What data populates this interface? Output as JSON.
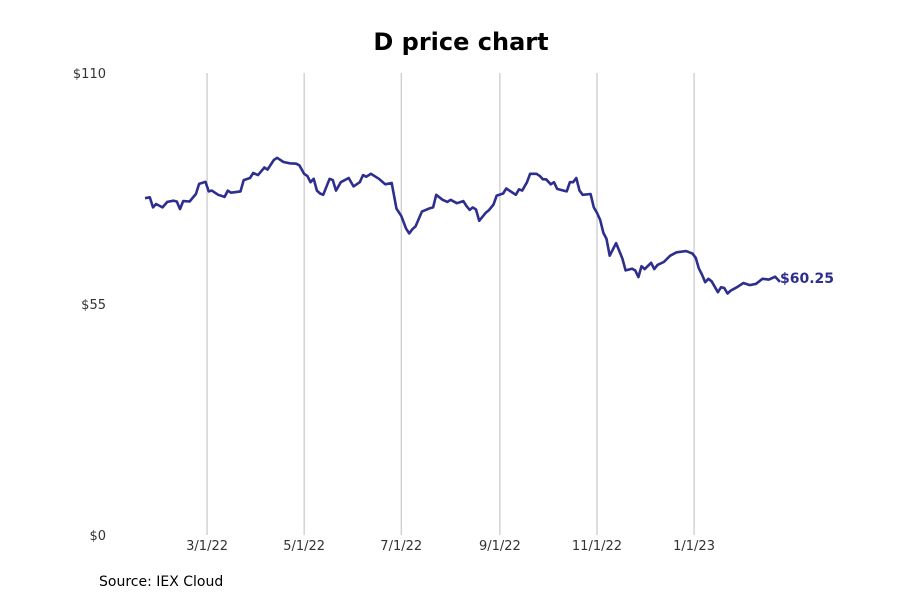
{
  "chart_data": {
    "type": "line",
    "title": "D price chart",
    "xlabel": "",
    "ylabel": "",
    "xlim": [
      "2022-01-21",
      "2023-02-24"
    ],
    "ylim": [
      0,
      110
    ],
    "grid": "vertical",
    "x_ticks": [
      {
        "date": "2022-03-01",
        "label": "3/1/22"
      },
      {
        "date": "2022-05-01",
        "label": "5/1/22"
      },
      {
        "date": "2022-07-01",
        "label": "7/1/22"
      },
      {
        "date": "2022-09-01",
        "label": "9/1/22"
      },
      {
        "date": "2022-11-01",
        "label": "11/1/22"
      },
      {
        "date": "2023-01-01",
        "label": "1/1/23"
      }
    ],
    "y_ticks": [
      {
        "value": 0,
        "label": "$0"
      },
      {
        "value": 55,
        "label": "$55"
      },
      {
        "value": 110,
        "label": "$110"
      }
    ],
    "series": [
      {
        "color": "#2e2e8f",
        "end_label": "$60.25",
        "points": [
          [
            "2022-01-21",
            80.2
          ],
          [
            "2022-01-24",
            80.4
          ],
          [
            "2022-01-26",
            78.0
          ],
          [
            "2022-01-28",
            78.8
          ],
          [
            "2022-02-01",
            78.0
          ],
          [
            "2022-02-04",
            79.3
          ],
          [
            "2022-02-08",
            79.6
          ],
          [
            "2022-02-10",
            79.4
          ],
          [
            "2022-02-12",
            77.6
          ],
          [
            "2022-02-14",
            79.5
          ],
          [
            "2022-02-18",
            79.4
          ],
          [
            "2022-02-22",
            81.2
          ],
          [
            "2022-02-24",
            83.6
          ],
          [
            "2022-02-28",
            84.1
          ],
          [
            "2022-03-02",
            81.8
          ],
          [
            "2022-03-04",
            82.0
          ],
          [
            "2022-03-08",
            81.0
          ],
          [
            "2022-03-12",
            80.5
          ],
          [
            "2022-03-14",
            82.0
          ],
          [
            "2022-03-16",
            81.5
          ],
          [
            "2022-03-22",
            81.8
          ],
          [
            "2022-03-24",
            84.5
          ],
          [
            "2022-03-28",
            85.0
          ],
          [
            "2022-03-30",
            86.2
          ],
          [
            "2022-04-02",
            85.7
          ],
          [
            "2022-04-06",
            87.5
          ],
          [
            "2022-04-08",
            87.0
          ],
          [
            "2022-04-12",
            89.3
          ],
          [
            "2022-04-14",
            89.8
          ],
          [
            "2022-04-18",
            88.8
          ],
          [
            "2022-04-22",
            88.5
          ],
          [
            "2022-04-26",
            88.4
          ],
          [
            "2022-04-28",
            88.0
          ],
          [
            "2022-05-01",
            86.0
          ],
          [
            "2022-05-03",
            85.5
          ],
          [
            "2022-05-05",
            84.0
          ],
          [
            "2022-05-07",
            84.8
          ],
          [
            "2022-05-09",
            82.0
          ],
          [
            "2022-05-11",
            81.3
          ],
          [
            "2022-05-13",
            81.0
          ],
          [
            "2022-05-17",
            84.8
          ],
          [
            "2022-05-19",
            84.5
          ],
          [
            "2022-05-21",
            82.0
          ],
          [
            "2022-05-24",
            84.0
          ],
          [
            "2022-05-29",
            85.0
          ],
          [
            "2022-06-01",
            83.0
          ],
          [
            "2022-06-05",
            84.0
          ],
          [
            "2022-06-07",
            85.7
          ],
          [
            "2022-06-09",
            85.3
          ],
          [
            "2022-06-12",
            86.0
          ],
          [
            "2022-06-17",
            84.8
          ],
          [
            "2022-06-21",
            83.5
          ],
          [
            "2022-06-25",
            83.8
          ],
          [
            "2022-06-28",
            77.7
          ],
          [
            "2022-07-01",
            76.0
          ],
          [
            "2022-07-04",
            73.0
          ],
          [
            "2022-07-06",
            71.8
          ],
          [
            "2022-07-08",
            72.8
          ],
          [
            "2022-07-10",
            73.5
          ],
          [
            "2022-07-14",
            77.0
          ],
          [
            "2022-07-19",
            77.8
          ],
          [
            "2022-07-21",
            78.0
          ],
          [
            "2022-07-23",
            81.0
          ],
          [
            "2022-07-27",
            79.8
          ],
          [
            "2022-07-30",
            79.3
          ],
          [
            "2022-08-01",
            79.8
          ],
          [
            "2022-08-05",
            79.0
          ],
          [
            "2022-08-09",
            79.5
          ],
          [
            "2022-08-11",
            78.3
          ],
          [
            "2022-08-13",
            77.4
          ],
          [
            "2022-08-15",
            78.0
          ],
          [
            "2022-08-17",
            77.5
          ],
          [
            "2022-08-19",
            74.8
          ],
          [
            "2022-08-23",
            76.7
          ],
          [
            "2022-08-25",
            77.3
          ],
          [
            "2022-08-28",
            78.7
          ],
          [
            "2022-08-30",
            80.8
          ],
          [
            "2022-09-03",
            81.3
          ],
          [
            "2022-09-05",
            82.5
          ],
          [
            "2022-09-09",
            81.5
          ],
          [
            "2022-09-11",
            81.0
          ],
          [
            "2022-09-13",
            82.3
          ],
          [
            "2022-09-15",
            82.0
          ],
          [
            "2022-09-18",
            84.0
          ],
          [
            "2022-09-20",
            86.0
          ],
          [
            "2022-09-24",
            86.0
          ],
          [
            "2022-09-26",
            85.5
          ],
          [
            "2022-09-28",
            84.7
          ],
          [
            "2022-09-30",
            84.7
          ],
          [
            "2022-10-03",
            83.5
          ],
          [
            "2022-10-05",
            84.0
          ],
          [
            "2022-10-07",
            82.4
          ],
          [
            "2022-10-11",
            82.0
          ],
          [
            "2022-10-13",
            81.8
          ],
          [
            "2022-10-15",
            84.0
          ],
          [
            "2022-10-17",
            84.0
          ],
          [
            "2022-10-19",
            85.0
          ],
          [
            "2022-10-21",
            82.0
          ],
          [
            "2022-10-23",
            81.0
          ],
          [
            "2022-10-28",
            81.2
          ],
          [
            "2022-10-30",
            78.0
          ],
          [
            "2022-11-01",
            76.7
          ],
          [
            "2022-11-03",
            75.0
          ],
          [
            "2022-11-05",
            72.0
          ],
          [
            "2022-11-07",
            70.5
          ],
          [
            "2022-11-09",
            66.5
          ],
          [
            "2022-11-13",
            69.5
          ],
          [
            "2022-11-17",
            65.8
          ],
          [
            "2022-11-19",
            63.0
          ],
          [
            "2022-11-23",
            63.4
          ],
          [
            "2022-11-25",
            63.0
          ],
          [
            "2022-11-27",
            61.4
          ],
          [
            "2022-11-29",
            64.0
          ],
          [
            "2022-12-01",
            63.3
          ],
          [
            "2022-12-05",
            64.8
          ],
          [
            "2022-12-07",
            63.3
          ],
          [
            "2022-12-09",
            64.3
          ],
          [
            "2022-12-13",
            65.0
          ],
          [
            "2022-12-17",
            66.5
          ],
          [
            "2022-12-21",
            67.3
          ],
          [
            "2022-12-27",
            67.6
          ],
          [
            "2022-12-31",
            67.0
          ],
          [
            "2023-01-02",
            66.0
          ],
          [
            "2023-01-04",
            63.5
          ],
          [
            "2023-01-06",
            62.0
          ],
          [
            "2023-01-08",
            60.2
          ],
          [
            "2023-01-10",
            61.0
          ],
          [
            "2023-01-12",
            60.4
          ],
          [
            "2023-01-16",
            57.8
          ],
          [
            "2023-01-18",
            59.0
          ],
          [
            "2023-01-20",
            58.8
          ],
          [
            "2023-01-22",
            57.5
          ],
          [
            "2023-01-24",
            58.2
          ],
          [
            "2023-01-28",
            59.0
          ],
          [
            "2023-02-01",
            60.0
          ],
          [
            "2023-02-05",
            59.5
          ],
          [
            "2023-02-09",
            59.8
          ],
          [
            "2023-02-13",
            61.0
          ],
          [
            "2023-02-17",
            60.8
          ],
          [
            "2023-02-21",
            61.5
          ],
          [
            "2023-02-24",
            60.25
          ]
        ]
      }
    ]
  },
  "footer": {
    "source": "Source: IEX Cloud"
  }
}
